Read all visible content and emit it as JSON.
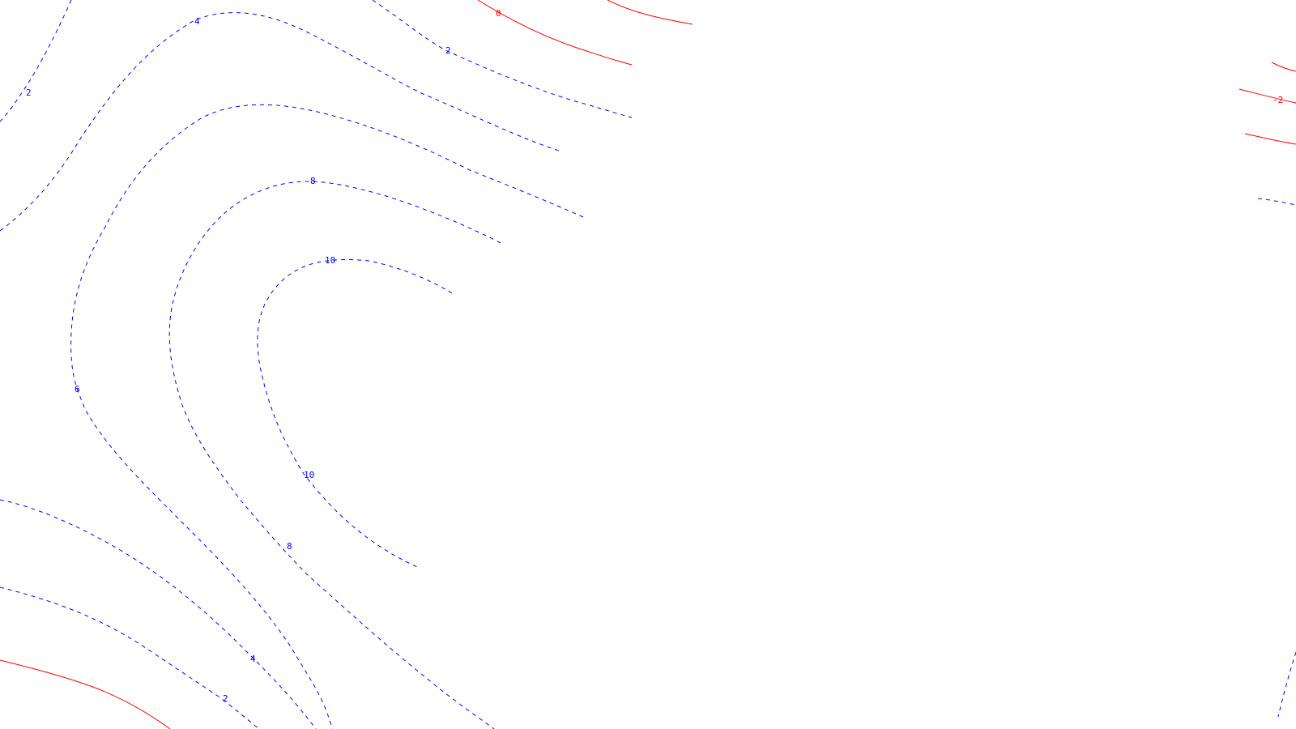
{
  "chart_data": {
    "type": "contour",
    "title": "",
    "xlabel": "",
    "ylabel": "",
    "grid": false,
    "legend": "none",
    "colors": {
      "positive": "#0000ff",
      "negative": "#ff0000",
      "background": "#ffffff"
    },
    "line_styles": {
      "positive": "dashed",
      "negative": "solid"
    },
    "levels": [
      {
        "value": -2,
        "label": "-2",
        "color": "#ff0000",
        "style": "solid"
      },
      {
        "value": 0,
        "label": "0",
        "color": "#ff0000",
        "style": "solid"
      },
      {
        "value": 2,
        "label": "2",
        "color": "#0000ff",
        "style": "dashed"
      },
      {
        "value": 4,
        "label": "4",
        "color": "#0000ff",
        "style": "dashed"
      },
      {
        "value": 6,
        "label": "6",
        "color": "#0000ff",
        "style": "dashed"
      },
      {
        "value": 8,
        "label": "8",
        "color": "#0000ff",
        "style": "dashed"
      },
      {
        "value": 10,
        "label": "10",
        "color": "#0000ff",
        "style": "dashed"
      }
    ]
  }
}
